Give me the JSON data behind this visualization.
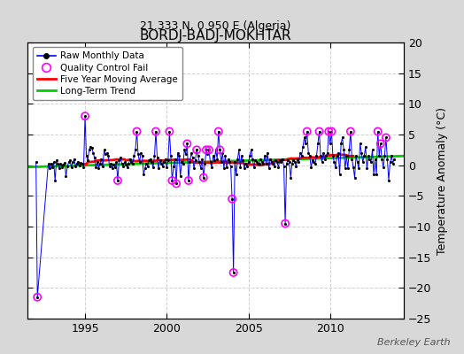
{
  "title": "BORDJ-BADJ-MOKHTAR",
  "subtitle": "21.333 N, 0.950 E (Algeria)",
  "ylabel": "Temperature Anomaly (°C)",
  "watermark": "Berkeley Earth",
  "xlim": [
    1991.5,
    2014.5
  ],
  "ylim": [
    -25,
    20
  ],
  "yticks": [
    -25,
    -20,
    -15,
    -10,
    -5,
    0,
    5,
    10,
    15,
    20
  ],
  "xticks": [
    1995,
    2000,
    2005,
    2010
  ],
  "bg_color": "#d8d8d8",
  "plot_bg": "#ffffff",
  "raw_color": "#0000ff",
  "dot_color": "#000000",
  "qc_color": "#ff00ff",
  "moving_avg_color": "#ff0000",
  "trend_color": "#00cc00",
  "raw_data": [
    [
      1992.0,
      0.5
    ],
    [
      1992.083,
      -21.5
    ],
    [
      1992.75,
      0.2
    ],
    [
      1992.833,
      -0.5
    ],
    [
      1992.917,
      0.3
    ],
    [
      1993.0,
      -0.3
    ],
    [
      1993.083,
      0.5
    ],
    [
      1993.167,
      -2.5
    ],
    [
      1993.25,
      0.8
    ],
    [
      1993.333,
      0.3
    ],
    [
      1993.417,
      -0.5
    ],
    [
      1993.5,
      0.2
    ],
    [
      1993.583,
      -0.3
    ],
    [
      1993.667,
      0.1
    ],
    [
      1993.75,
      0.4
    ],
    [
      1993.833,
      -1.8
    ],
    [
      1993.917,
      -0.2
    ],
    [
      1994.0,
      0.5
    ],
    [
      1994.083,
      0.8
    ],
    [
      1994.167,
      -0.3
    ],
    [
      1994.25,
      0.5
    ],
    [
      1994.333,
      1.0
    ],
    [
      1994.417,
      -0.2
    ],
    [
      1994.5,
      0.3
    ],
    [
      1994.583,
      0.6
    ],
    [
      1994.667,
      -0.1
    ],
    [
      1994.75,
      0.4
    ],
    [
      1994.833,
      0.2
    ],
    [
      1994.917,
      -0.3
    ],
    [
      1995.0,
      8.0
    ],
    [
      1995.083,
      1.5
    ],
    [
      1995.167,
      0.8
    ],
    [
      1995.25,
      2.5
    ],
    [
      1995.333,
      3.0
    ],
    [
      1995.417,
      2.8
    ],
    [
      1995.5,
      2.0
    ],
    [
      1995.583,
      1.2
    ],
    [
      1995.667,
      -0.3
    ],
    [
      1995.75,
      0.5
    ],
    [
      1995.833,
      -0.5
    ],
    [
      1995.917,
      0.3
    ],
    [
      1996.0,
      1.0
    ],
    [
      1996.083,
      -0.2
    ],
    [
      1996.167,
      2.5
    ],
    [
      1996.25,
      1.8
    ],
    [
      1996.333,
      2.0
    ],
    [
      1996.417,
      1.5
    ],
    [
      1996.5,
      -0.2
    ],
    [
      1996.583,
      0.3
    ],
    [
      1996.667,
      -0.5
    ],
    [
      1996.75,
      0.1
    ],
    [
      1996.833,
      -0.3
    ],
    [
      1996.917,
      0.5
    ],
    [
      1997.0,
      -2.5
    ],
    [
      1997.083,
      0.8
    ],
    [
      1997.167,
      1.2
    ],
    [
      1997.25,
      0.3
    ],
    [
      1997.333,
      -0.2
    ],
    [
      1997.417,
      0.5
    ],
    [
      1997.5,
      0.1
    ],
    [
      1997.583,
      -0.4
    ],
    [
      1997.667,
      0.2
    ],
    [
      1997.75,
      1.0
    ],
    [
      1997.833,
      0.5
    ],
    [
      1997.917,
      0.3
    ],
    [
      1998.0,
      1.5
    ],
    [
      1998.083,
      2.5
    ],
    [
      1998.167,
      5.5
    ],
    [
      1998.25,
      1.8
    ],
    [
      1998.333,
      0.5
    ],
    [
      1998.417,
      2.0
    ],
    [
      1998.5,
      1.5
    ],
    [
      1998.583,
      -1.5
    ],
    [
      1998.667,
      -0.5
    ],
    [
      1998.75,
      0.3
    ],
    [
      1998.833,
      -0.2
    ],
    [
      1998.917,
      0.8
    ],
    [
      1999.0,
      1.0
    ],
    [
      1999.083,
      0.5
    ],
    [
      1999.167,
      -0.3
    ],
    [
      1999.25,
      1.5
    ],
    [
      1999.333,
      5.5
    ],
    [
      1999.417,
      1.2
    ],
    [
      1999.5,
      -0.5
    ],
    [
      1999.583,
      0.8
    ],
    [
      1999.667,
      0.3
    ],
    [
      1999.75,
      -0.2
    ],
    [
      1999.833,
      0.5
    ],
    [
      1999.917,
      1.0
    ],
    [
      2000.0,
      -0.3
    ],
    [
      2000.083,
      0.8
    ],
    [
      2000.167,
      5.5
    ],
    [
      2000.25,
      1.5
    ],
    [
      2000.333,
      -2.5
    ],
    [
      2000.417,
      -0.2
    ],
    [
      2000.5,
      1.0
    ],
    [
      2000.583,
      -3.0
    ],
    [
      2000.667,
      2.0
    ],
    [
      2000.75,
      1.5
    ],
    [
      2000.833,
      -1.8
    ],
    [
      2000.917,
      0.5
    ],
    [
      2001.0,
      0.2
    ],
    [
      2001.083,
      2.5
    ],
    [
      2001.167,
      1.8
    ],
    [
      2001.25,
      3.5
    ],
    [
      2001.333,
      -2.5
    ],
    [
      2001.417,
      0.5
    ],
    [
      2001.5,
      2.0
    ],
    [
      2001.583,
      1.2
    ],
    [
      2001.667,
      -0.5
    ],
    [
      2001.75,
      0.8
    ],
    [
      2001.833,
      2.5
    ],
    [
      2001.917,
      1.5
    ],
    [
      2002.0,
      0.5
    ],
    [
      2002.083,
      -0.5
    ],
    [
      2002.167,
      1.0
    ],
    [
      2002.25,
      -2.0
    ],
    [
      2002.333,
      0.3
    ],
    [
      2002.417,
      2.5
    ],
    [
      2002.5,
      1.8
    ],
    [
      2002.583,
      2.5
    ],
    [
      2002.667,
      0.5
    ],
    [
      2002.75,
      -0.3
    ],
    [
      2002.833,
      1.5
    ],
    [
      2002.917,
      0.8
    ],
    [
      2003.0,
      2.5
    ],
    [
      2003.083,
      1.0
    ],
    [
      2003.167,
      5.5
    ],
    [
      2003.25,
      2.5
    ],
    [
      2003.333,
      0.5
    ],
    [
      2003.417,
      2.0
    ],
    [
      2003.5,
      -0.5
    ],
    [
      2003.583,
      1.5
    ],
    [
      2003.667,
      -0.3
    ],
    [
      2003.75,
      1.0
    ],
    [
      2003.833,
      0.5
    ],
    [
      2003.917,
      -0.2
    ],
    [
      2004.0,
      -5.5
    ],
    [
      2004.083,
      -17.5
    ],
    [
      2004.167,
      0.5
    ],
    [
      2004.25,
      -1.5
    ],
    [
      2004.333,
      1.0
    ],
    [
      2004.417,
      2.5
    ],
    [
      2004.5,
      -0.3
    ],
    [
      2004.583,
      1.5
    ],
    [
      2004.667,
      0.8
    ],
    [
      2004.75,
      -0.5
    ],
    [
      2004.833,
      0.3
    ],
    [
      2004.917,
      -0.2
    ],
    [
      2005.0,
      0.5
    ],
    [
      2005.083,
      1.5
    ],
    [
      2005.167,
      2.5
    ],
    [
      2005.25,
      1.0
    ],
    [
      2005.333,
      -0.3
    ],
    [
      2005.417,
      0.8
    ],
    [
      2005.5,
      0.5
    ],
    [
      2005.583,
      0.2
    ],
    [
      2005.667,
      0.3
    ],
    [
      2005.75,
      1.0
    ],
    [
      2005.833,
      0.5
    ],
    [
      2005.917,
      0.2
    ],
    [
      2006.0,
      1.5
    ],
    [
      2006.083,
      0.3
    ],
    [
      2006.167,
      2.0
    ],
    [
      2006.25,
      -0.5
    ],
    [
      2006.333,
      1.0
    ],
    [
      2006.417,
      0.5
    ],
    [
      2006.5,
      0.3
    ],
    [
      2006.583,
      -0.2
    ],
    [
      2006.667,
      0.8
    ],
    [
      2006.75,
      0.5
    ],
    [
      2006.833,
      -0.3
    ],
    [
      2006.917,
      0.8
    ],
    [
      2007.0,
      0.5
    ],
    [
      2007.083,
      1.0
    ],
    [
      2007.167,
      -0.2
    ],
    [
      2007.25,
      -9.5
    ],
    [
      2007.333,
      0.3
    ],
    [
      2007.417,
      0.8
    ],
    [
      2007.5,
      0.5
    ],
    [
      2007.583,
      -2.0
    ],
    [
      2007.667,
      0.3
    ],
    [
      2007.75,
      0.8
    ],
    [
      2007.833,
      0.5
    ],
    [
      2007.917,
      -0.2
    ],
    [
      2008.0,
      1.0
    ],
    [
      2008.083,
      0.5
    ],
    [
      2008.167,
      2.0
    ],
    [
      2008.25,
      1.5
    ],
    [
      2008.333,
      3.0
    ],
    [
      2008.417,
      4.5
    ],
    [
      2008.5,
      3.5
    ],
    [
      2008.583,
      5.5
    ],
    [
      2008.667,
      2.0
    ],
    [
      2008.75,
      1.5
    ],
    [
      2008.833,
      -0.3
    ],
    [
      2008.917,
      0.8
    ],
    [
      2009.0,
      0.5
    ],
    [
      2009.083,
      0.3
    ],
    [
      2009.167,
      1.5
    ],
    [
      2009.25,
      3.5
    ],
    [
      2009.333,
      5.5
    ],
    [
      2009.417,
      1.5
    ],
    [
      2009.5,
      0.5
    ],
    [
      2009.583,
      2.0
    ],
    [
      2009.667,
      1.0
    ],
    [
      2009.75,
      1.5
    ],
    [
      2009.833,
      2.0
    ],
    [
      2009.917,
      5.5
    ],
    [
      2010.0,
      3.5
    ],
    [
      2010.083,
      5.5
    ],
    [
      2010.167,
      1.5
    ],
    [
      2010.25,
      0.5
    ],
    [
      2010.333,
      -0.3
    ],
    [
      2010.417,
      1.5
    ],
    [
      2010.5,
      2.0
    ],
    [
      2010.583,
      -1.5
    ],
    [
      2010.667,
      3.5
    ],
    [
      2010.75,
      4.5
    ],
    [
      2010.833,
      2.5
    ],
    [
      2010.917,
      -0.5
    ],
    [
      2011.0,
      1.5
    ],
    [
      2011.083,
      -0.5
    ],
    [
      2011.167,
      2.5
    ],
    [
      2011.25,
      5.5
    ],
    [
      2011.333,
      1.0
    ],
    [
      2011.417,
      -0.3
    ],
    [
      2011.5,
      -2.0
    ],
    [
      2011.583,
      1.5
    ],
    [
      2011.667,
      0.5
    ],
    [
      2011.75,
      -0.5
    ],
    [
      2011.833,
      3.5
    ],
    [
      2011.917,
      2.0
    ],
    [
      2012.0,
      0.5
    ],
    [
      2012.083,
      1.5
    ],
    [
      2012.167,
      3.0
    ],
    [
      2012.25,
      -0.5
    ],
    [
      2012.333,
      1.5
    ],
    [
      2012.417,
      1.0
    ],
    [
      2012.5,
      0.5
    ],
    [
      2012.583,
      2.5
    ],
    [
      2012.667,
      -1.5
    ],
    [
      2012.75,
      1.0
    ],
    [
      2012.833,
      -1.5
    ],
    [
      2012.917,
      5.5
    ],
    [
      2013.0,
      1.5
    ],
    [
      2013.083,
      3.5
    ],
    [
      2013.167,
      1.0
    ],
    [
      2013.25,
      -0.3
    ],
    [
      2013.333,
      1.5
    ],
    [
      2013.417,
      4.5
    ],
    [
      2013.5,
      1.0
    ],
    [
      2013.583,
      -2.5
    ],
    [
      2013.667,
      0.5
    ],
    [
      2013.75,
      1.5
    ],
    [
      2013.833,
      0.3
    ],
    [
      2013.917,
      1.0
    ]
  ],
  "qc_fail_points": [
    [
      1992.083,
      -21.5
    ],
    [
      1995.0,
      8.0
    ],
    [
      1997.0,
      -2.5
    ],
    [
      1998.167,
      5.5
    ],
    [
      1999.333,
      5.5
    ],
    [
      2000.167,
      5.5
    ],
    [
      2000.333,
      -2.5
    ],
    [
      2000.583,
      -3.0
    ],
    [
      2001.25,
      3.5
    ],
    [
      2001.333,
      -2.5
    ],
    [
      2001.833,
      2.5
    ],
    [
      2002.25,
      -2.0
    ],
    [
      2002.417,
      2.5
    ],
    [
      2002.583,
      2.5
    ],
    [
      2003.167,
      5.5
    ],
    [
      2003.25,
      2.5
    ],
    [
      2004.0,
      -5.5
    ],
    [
      2004.083,
      -17.5
    ],
    [
      2007.25,
      -9.5
    ],
    [
      2008.583,
      5.5
    ],
    [
      2009.333,
      5.5
    ],
    [
      2009.917,
      5.5
    ],
    [
      2010.083,
      5.5
    ],
    [
      2011.25,
      5.5
    ],
    [
      2012.917,
      5.5
    ],
    [
      2013.083,
      3.5
    ],
    [
      2013.417,
      4.5
    ]
  ],
  "trend_x": [
    1991.5,
    2014.5
  ],
  "trend_y": [
    -0.3,
    1.5
  ]
}
